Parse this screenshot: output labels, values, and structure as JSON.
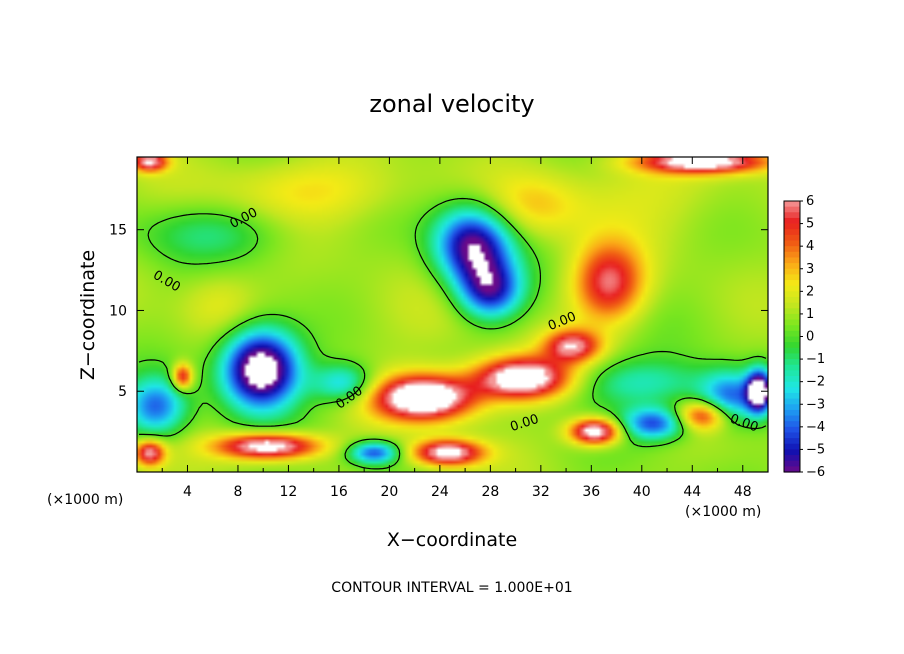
{
  "chart_data": {
    "type": "heatmap",
    "title": "zonal velocity",
    "xlabel": "X−coordinate",
    "ylabel": "Z−coordinate",
    "x_unit_left": "(×1000 m)",
    "x_unit_right": "(×1000 m)",
    "xlim": [
      0,
      50
    ],
    "ylim": [
      0,
      19.5
    ],
    "x_ticks": [
      4,
      8,
      12,
      16,
      20,
      24,
      28,
      32,
      36,
      40,
      44,
      48
    ],
    "x_tick_labels": [
      "4",
      "8",
      "12",
      "16",
      "20",
      "24",
      "28",
      "32",
      "36",
      "40",
      "44",
      "48"
    ],
    "y_ticks": [
      5,
      10,
      15
    ],
    "y_tick_labels": [
      "5",
      "10",
      "15"
    ],
    "colorbar": {
      "min": -6,
      "max": 6,
      "ticks": [
        6,
        5,
        4,
        3,
        2,
        1,
        0,
        -1,
        -2,
        -3,
        -4,
        -5,
        -6
      ],
      "labels": [
        "6",
        "5",
        "4",
        "3",
        "2",
        "1",
        "0",
        "−1",
        "−2",
        "−3",
        "−4",
        "−5",
        "−6"
      ]
    },
    "contour_label": "0.00",
    "contour_interval_text": "CONTOUR INTERVAL =  1.000E+01",
    "background_value": 0.8,
    "features": [
      {
        "x": 26.6,
        "z": 14.0,
        "sx": 3.0,
        "sz": 2.4,
        "value": -7.0
      },
      {
        "x": 28.0,
        "z": 11.2,
        "sx": 2.5,
        "sz": 1.8,
        "value": -5.5
      },
      {
        "x": 37.4,
        "z": 11.7,
        "sx": 2.8,
        "sz": 2.4,
        "value": 4.8
      },
      {
        "x": 9.8,
        "z": 6.4,
        "sx": 3.0,
        "sz": 2.4,
        "value": -9.0
      },
      {
        "x": 22.8,
        "z": 4.6,
        "sx": 4.0,
        "sz": 1.4,
        "value": 8.0
      },
      {
        "x": 30.5,
        "z": 5.8,
        "sx": 3.8,
        "sz": 1.3,
        "value": 7.5
      },
      {
        "x": 34.5,
        "z": 7.8,
        "sx": 2.2,
        "sz": 1.0,
        "value": 5.0
      },
      {
        "x": 10.4,
        "z": 1.6,
        "sx": 4.0,
        "sz": 0.8,
        "value": 7.0
      },
      {
        "x": 24.6,
        "z": 1.2,
        "sx": 2.8,
        "sz": 0.8,
        "value": 6.5
      },
      {
        "x": 18.8,
        "z": 1.2,
        "sx": 2.0,
        "sz": 0.7,
        "value": -5.0
      },
      {
        "x": 36.3,
        "z": 2.5,
        "sx": 2.0,
        "sz": 0.8,
        "value": 7.0
      },
      {
        "x": 41.0,
        "z": 3.0,
        "sx": 2.6,
        "sz": 1.0,
        "value": -5.0
      },
      {
        "x": 44.8,
        "z": 3.5,
        "sx": 2.0,
        "sz": 0.9,
        "value": 4.5
      },
      {
        "x": 47.0,
        "z": 4.6,
        "sx": 2.4,
        "sz": 1.6,
        "value": -4.5
      },
      {
        "x": 49.3,
        "z": 5.0,
        "sx": 1.0,
        "sz": 1.3,
        "value": -8.0
      },
      {
        "x": 1.5,
        "z": 4.0,
        "sx": 2.4,
        "sz": 1.8,
        "value": -4.5
      },
      {
        "x": 3.6,
        "z": 5.9,
        "sx": 0.8,
        "sz": 0.8,
        "value": 5.0
      },
      {
        "x": 1.0,
        "z": 1.2,
        "sx": 1.2,
        "sz": 0.8,
        "value": 5.5
      },
      {
        "x": 16.4,
        "z": 5.5,
        "sx": 2.4,
        "sz": 1.2,
        "value": -3.5
      },
      {
        "x": 45.0,
        "z": 19.2,
        "sx": 5.0,
        "sz": 0.7,
        "value": 6.5
      },
      {
        "x": 1.0,
        "z": 19.2,
        "sx": 1.4,
        "sz": 0.6,
        "value": 5.5
      },
      {
        "x": 6.0,
        "z": 14.8,
        "sx": 6.0,
        "sz": 1.8,
        "value": -1.6
      },
      {
        "x": 40.0,
        "z": 5.5,
        "sx": 6.0,
        "sz": 1.5,
        "value": -2.5
      },
      {
        "x": 41.0,
        "z": 17.5,
        "sx": 7.0,
        "sz": 3.0,
        "value": 1.0
      },
      {
        "x": 22.0,
        "z": 9.5,
        "sx": 10.0,
        "sz": 3.0,
        "value": 0.4
      },
      {
        "x": 31.5,
        "z": 16.5,
        "sx": 4.0,
        "sz": 2.0,
        "value": 1.8
      },
      {
        "x": 6.5,
        "z": 10.5,
        "sx": 3.0,
        "sz": 2.0,
        "value": 1.2
      },
      {
        "x": 14.0,
        "z": 17.5,
        "sx": 8.0,
        "sz": 2.0,
        "value": 1.6
      }
    ]
  }
}
